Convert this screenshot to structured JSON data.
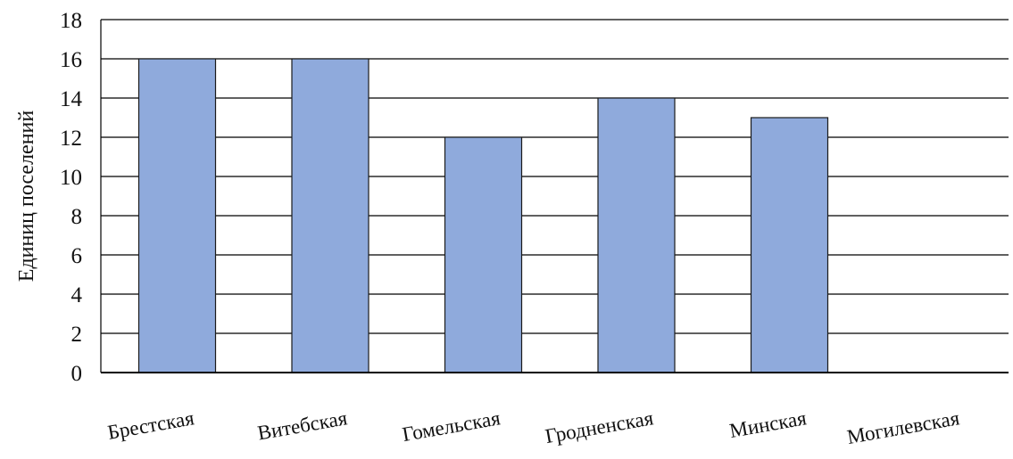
{
  "chart_data": {
    "type": "bar",
    "categories": [
      "Брестская",
      "Витебская",
      "Гомельская",
      "Гродненская",
      "Минская",
      "Могилевская"
    ],
    "values": [
      16,
      16,
      12,
      14,
      13,
      0
    ],
    "title": "",
    "xlabel": "",
    "ylabel": "Единиц поселений",
    "ylim": [
      0,
      18
    ],
    "yticks": [
      "0",
      "2",
      "4",
      "6",
      "8",
      "10",
      "12",
      "14",
      "16",
      "18"
    ],
    "grid": true,
    "legend": "none",
    "colors": {
      "bar": "#8faadc",
      "bar_stroke": "#1a1a1a",
      "grid": "#000000",
      "axis": "#000000"
    }
  }
}
